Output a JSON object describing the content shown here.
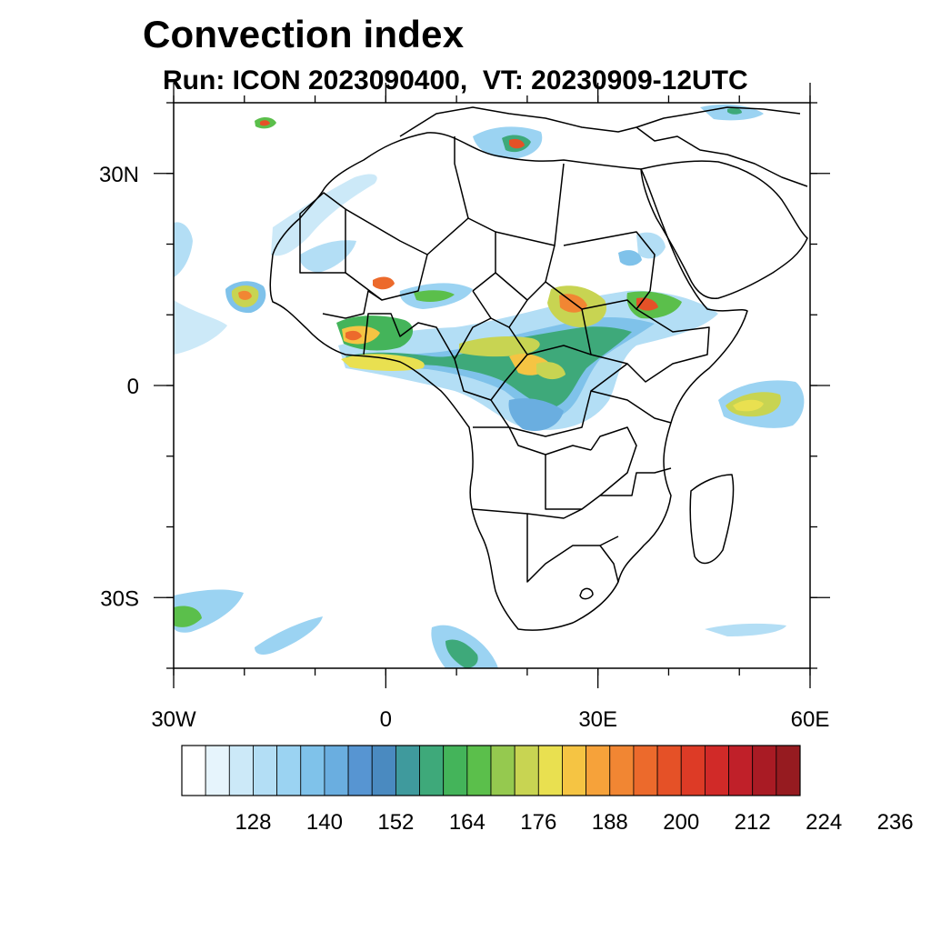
{
  "title": "Convection index",
  "subtitle": "Run: ICON 2023090400,  VT: 20230909-12UTC",
  "map": {
    "lon_range": [
      -30,
      60
    ],
    "lat_range": [
      -40,
      40
    ],
    "lat_ticks": [
      {
        "lat": 30,
        "label": "30N"
      },
      {
        "lat": 0,
        "label": "0"
      },
      {
        "lat": -30,
        "label": "30S"
      }
    ],
    "lon_ticks": [
      {
        "lon": -30,
        "label": "30W"
      },
      {
        "lon": 0,
        "label": "0"
      },
      {
        "lon": 30,
        "label": "30E"
      },
      {
        "lon": 60,
        "label": "60E"
      }
    ],
    "minor_lon_step": 10,
    "minor_lat_step": 10
  },
  "colorbar": {
    "colors": [
      "#ffffff",
      "#e6f4fc",
      "#cce9f8",
      "#b3def5",
      "#9bd3f2",
      "#7fc2ea",
      "#6aaee0",
      "#5795d2",
      "#4a8ac0",
      "#3f9a9d",
      "#3ea97a",
      "#44b45a",
      "#5bbf4b",
      "#95c94f",
      "#c8d452",
      "#e9e050",
      "#f5c443",
      "#f6a23a",
      "#f18633",
      "#ec6a2c",
      "#e55127",
      "#dd3b26",
      "#d12a28",
      "#c02029",
      "#a91b24",
      "#961b20"
    ],
    "labels": [
      "128",
      "140",
      "152",
      "164",
      "176",
      "188",
      "200",
      "212",
      "224",
      "236"
    ]
  },
  "icons": {
    "map": "africa-map"
  }
}
